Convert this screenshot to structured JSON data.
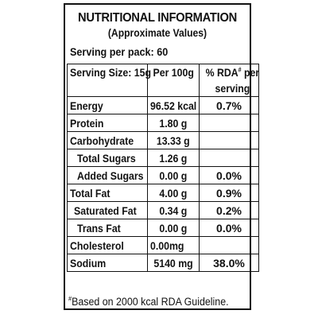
{
  "label": {
    "title": "NUTRITIONAL INFORMATION",
    "subtitle": "(Approximate Values)",
    "serving_per_pack": "Serving per pack: 60",
    "header": {
      "col1": "Serving Size: 15g",
      "col2": "Per 100g",
      "col3_line1": "% RDA",
      "col3_mark": "#",
      "col3_line1_tail": " per",
      "col3_line2": "serving"
    },
    "rows": [
      {
        "name": "Energy",
        "per100": "96.52 kcal",
        "rda": "0.7%"
      },
      {
        "name": "Protein",
        "per100": "1.80 g",
        "rda": ""
      },
      {
        "name": "Carbohydrate",
        "per100": "13.33 g",
        "rda": ""
      },
      {
        "name": "Total Sugars",
        "per100": "1.26 g",
        "rda": ""
      },
      {
        "name": "Added Sugars",
        "per100": "0.00 g",
        "rda": "0.0%"
      },
      {
        "name": "Total Fat",
        "per100": "4.00 g",
        "rda": "0.9%"
      },
      {
        "name": "Saturated Fat",
        "per100": "0.34 g",
        "rda": "0.2%"
      },
      {
        "name": "Trans Fat",
        "per100": "0.00 g",
        "rda": "0.0%"
      },
      {
        "name": "Cholesterol",
        "per100": "0.00mg",
        "rda": ""
      },
      {
        "name": "Sodium",
        "per100": "5140 mg",
        "rda": "38.0%"
      }
    ],
    "footnote_mark": "#",
    "footnote": "Based on 2000 kcal RDA Guideline."
  }
}
